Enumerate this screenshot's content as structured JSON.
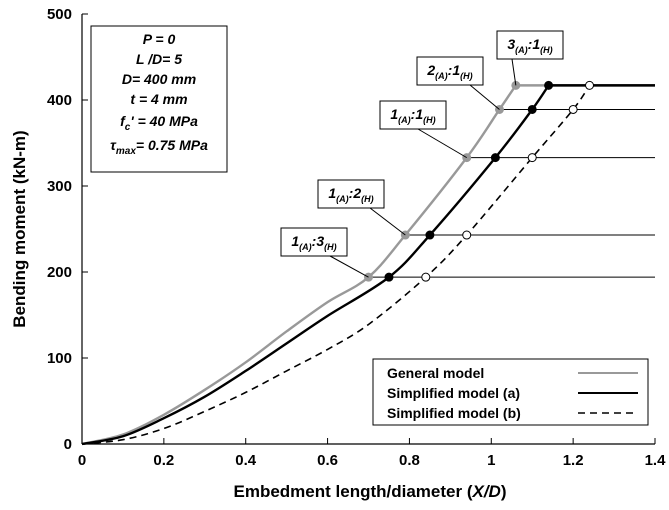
{
  "chart_data": {
    "type": "line",
    "xlabel_prefix": "Embedment length/diameter (",
    "xlabel_var": "X/D",
    "xlabel_suffix": ")",
    "ylabel": "Bending moment (kN-m)",
    "xlim": [
      0,
      1.4
    ],
    "ylim": [
      0,
      500
    ],
    "xticks": [
      "0",
      "0.2",
      "0.4",
      "0.6",
      "0.8",
      "1",
      "1.2",
      "1.4"
    ],
    "yticks": [
      "0",
      "100",
      "200",
      "300",
      "400",
      "500"
    ],
    "grid": false,
    "legend_position": "bottom-right",
    "series": [
      {
        "name": "General model",
        "color": "#999999",
        "dash": "solid",
        "x": [
          0,
          0.1,
          0.2,
          0.3,
          0.4,
          0.5,
          0.6,
          0.7,
          0.79,
          0.94,
          1.02,
          1.06,
          1.4
        ],
        "y": [
          0,
          11,
          34,
          63,
          95,
          131,
          165,
          194,
          243,
          333,
          389,
          417,
          417
        ],
        "markers": [
          [
            0.7,
            194
          ],
          [
            0.79,
            243
          ],
          [
            0.94,
            333
          ],
          [
            1.02,
            389
          ],
          [
            1.06,
            417
          ]
        ]
      },
      {
        "name": "Simplified model (a)",
        "color": "#000000",
        "dash": "solid",
        "x": [
          0,
          0.1,
          0.2,
          0.3,
          0.4,
          0.5,
          0.6,
          0.75,
          0.85,
          1.01,
          1.1,
          1.14,
          1.4
        ],
        "y": [
          0,
          9,
          30,
          55,
          85,
          117,
          149,
          194,
          243,
          333,
          389,
          417,
          417
        ],
        "markers": [
          [
            0.75,
            194
          ],
          [
            0.85,
            243
          ],
          [
            1.01,
            333
          ],
          [
            1.1,
            389
          ],
          [
            1.14,
            417
          ]
        ]
      },
      {
        "name": "Simplified model (b)",
        "color": "#000000",
        "dash": "dashed",
        "x": [
          0,
          0.1,
          0.2,
          0.3,
          0.4,
          0.5,
          0.6,
          0.7,
          0.84,
          0.94,
          1.1,
          1.2,
          1.24,
          1.4
        ],
        "y": [
          0,
          5,
          18,
          38,
          60,
          85,
          110,
          139,
          194,
          243,
          333,
          389,
          417,
          417
        ],
        "markers": [
          [
            0.84,
            194
          ],
          [
            0.94,
            243
          ],
          [
            1.1,
            333
          ],
          [
            1.2,
            389
          ],
          [
            1.24,
            417
          ]
        ]
      }
    ],
    "horizontal_levels": [
      194,
      243,
      333,
      389,
      417
    ],
    "annotations": [
      {
        "main": "1",
        "sub1": "(A)",
        "sep": ":",
        "num2": "3",
        "sub2": "(H)",
        "point": [
          0.7,
          194
        ]
      },
      {
        "main": "1",
        "sub1": "(A)",
        "sep": ":",
        "num2": "2",
        "sub2": "(H)",
        "point": [
          0.79,
          243
        ]
      },
      {
        "main": "1",
        "sub1": "(A)",
        "sep": ":",
        "num2": "1",
        "sub2": "(H)",
        "point": [
          0.94,
          333
        ]
      },
      {
        "main": "2",
        "sub1": "(A)",
        "sep": ":",
        "num2": "1",
        "sub2": "(H)",
        "point": [
          1.02,
          389
        ]
      },
      {
        "main": "3",
        "sub1": "(A)",
        "sep": ":",
        "num2": "1",
        "sub2": "(H)",
        "point": [
          1.06,
          417
        ]
      }
    ],
    "parameters": {
      "p": "P = 0",
      "ld": "L /D= 5",
      "d": "D= 400 mm",
      "t": "t = 4 mm",
      "fc_base": "f",
      "fc_sub": "c",
      "fc_rest": "' = 40 MPa",
      "tau_base": "τ",
      "tau_sub": "max",
      "tau_rest": "= 0.75 MPa"
    }
  }
}
